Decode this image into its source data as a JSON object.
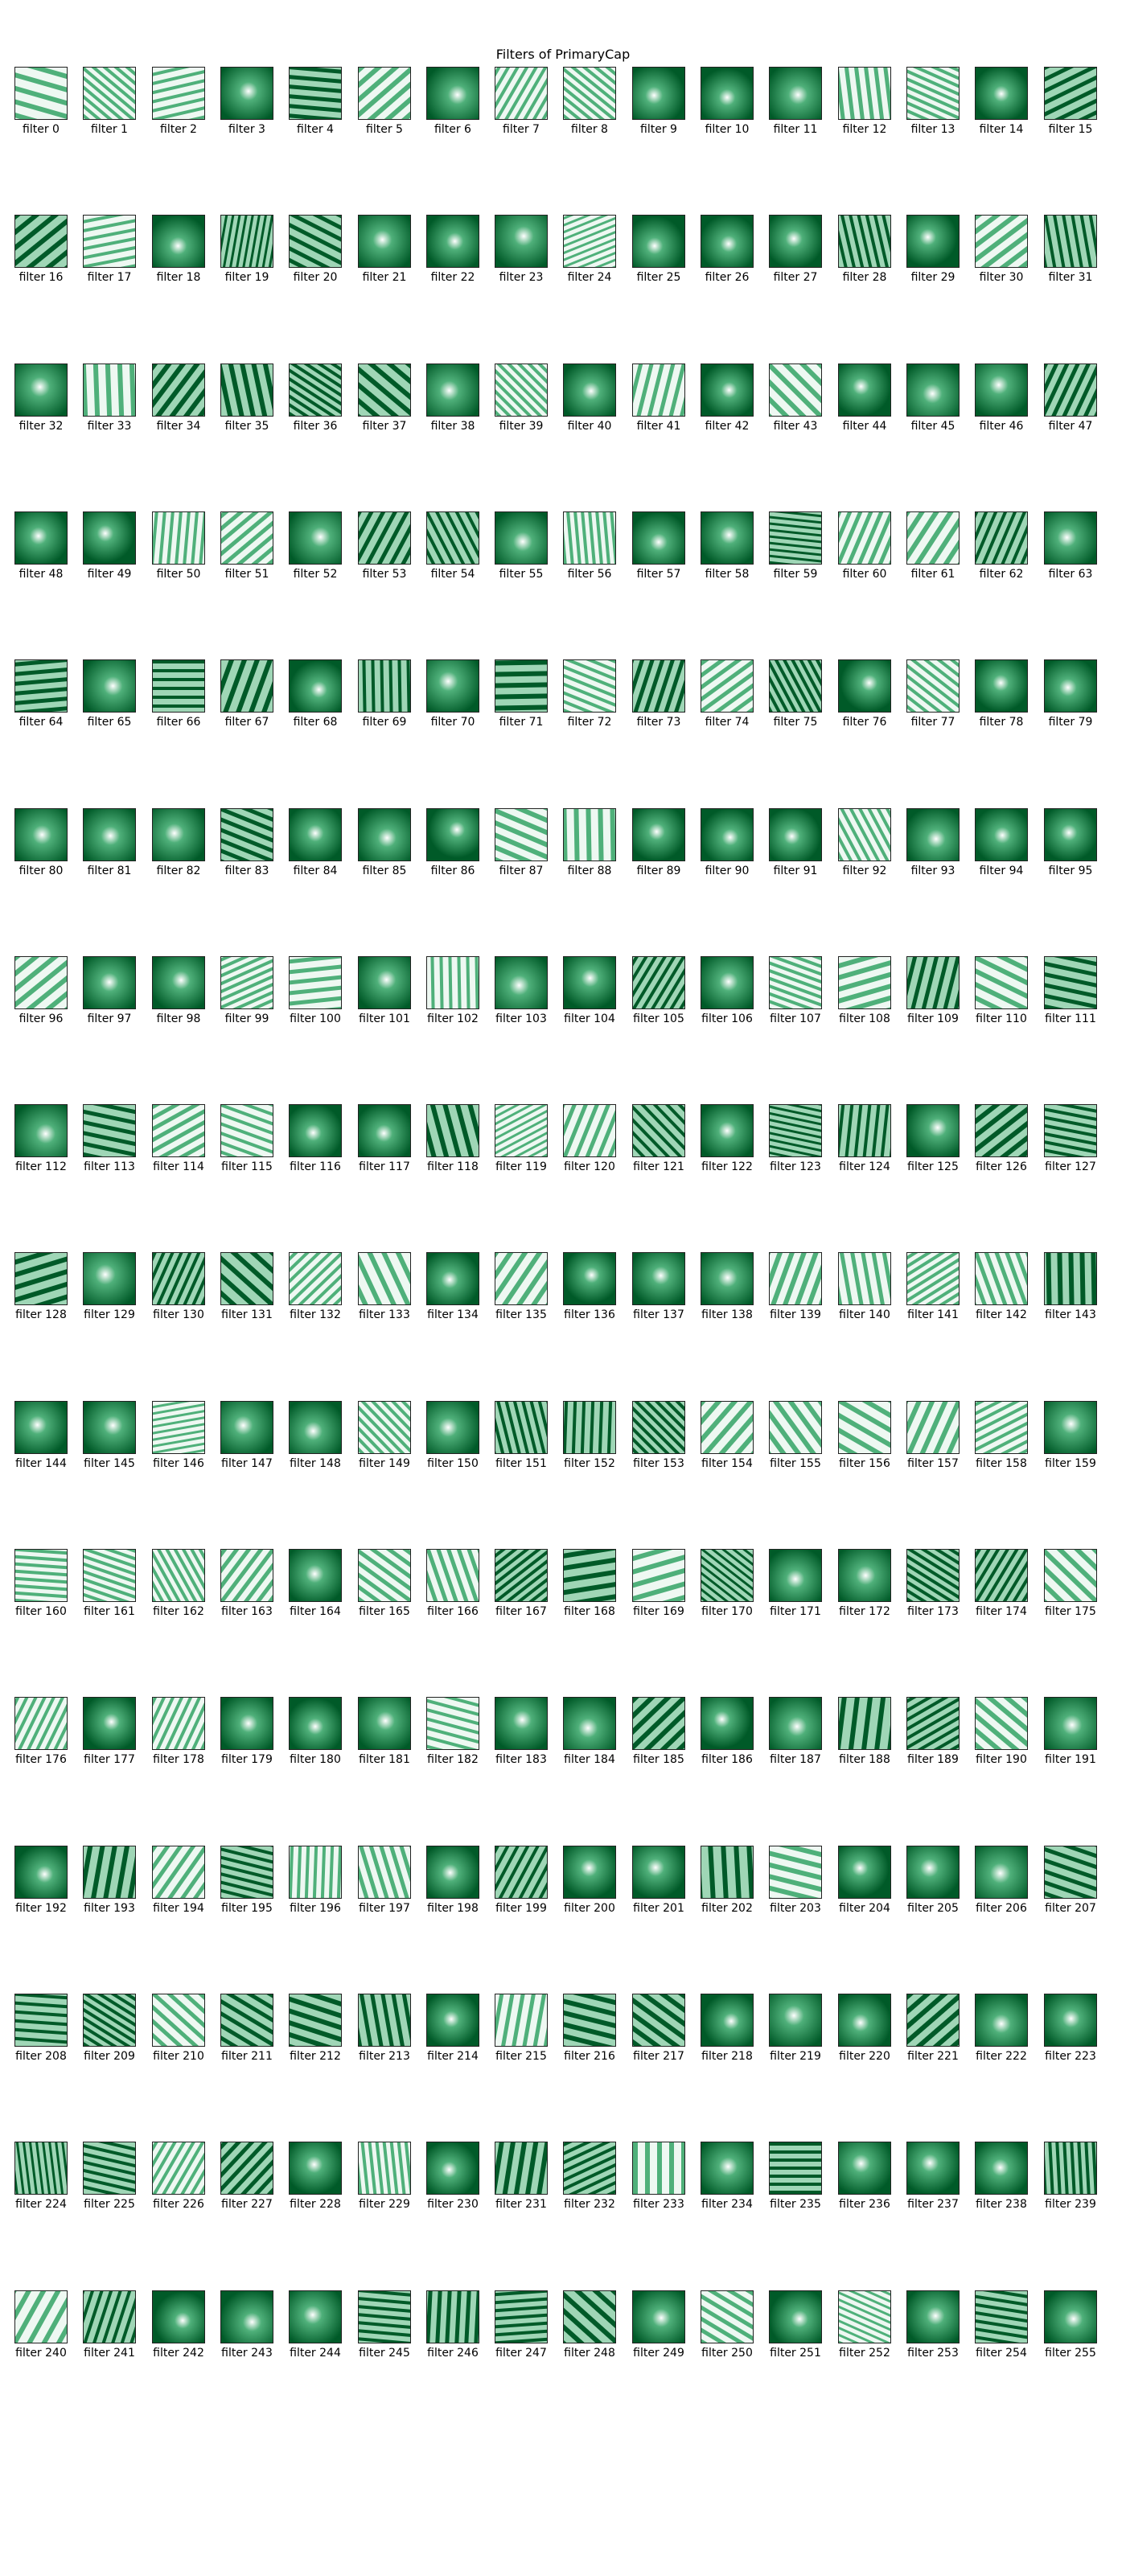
{
  "title": "Filters of PrimaryCap",
  "colormap": {
    "light": "#eef8f2",
    "mid": "#4fb07a",
    "dark": "#005a28"
  },
  "filters": [
    {
      "label": "filter 0",
      "type": "stripes"
    },
    {
      "label": "filter 1",
      "type": "stripes"
    },
    {
      "label": "filter 2",
      "type": "stripes"
    },
    {
      "label": "filter 3",
      "type": "blob"
    },
    {
      "label": "filter 4",
      "type": "stripes"
    },
    {
      "label": "filter 5",
      "type": "stripes"
    },
    {
      "label": "filter 6",
      "type": "blob"
    },
    {
      "label": "filter 7",
      "type": "stripes"
    },
    {
      "label": "filter 8",
      "type": "stripes"
    },
    {
      "label": "filter 9",
      "type": "blob"
    },
    {
      "label": "filter 10",
      "type": "blob"
    },
    {
      "label": "filter 11",
      "type": "blob"
    },
    {
      "label": "filter 12",
      "type": "stripes"
    },
    {
      "label": "filter 13",
      "type": "stripes"
    },
    {
      "label": "filter 14",
      "type": "blob"
    },
    {
      "label": "filter 15",
      "type": "stripes"
    },
    {
      "label": "filter 16",
      "type": "stripes"
    },
    {
      "label": "filter 17",
      "type": "stripes"
    },
    {
      "label": "filter 18",
      "type": "blob"
    },
    {
      "label": "filter 19",
      "type": "stripes"
    },
    {
      "label": "filter 20",
      "type": "stripes"
    },
    {
      "label": "filter 21",
      "type": "blob"
    },
    {
      "label": "filter 22",
      "type": "blob"
    },
    {
      "label": "filter 23",
      "type": "blob"
    },
    {
      "label": "filter 24",
      "type": "stripes"
    },
    {
      "label": "filter 25",
      "type": "blob"
    },
    {
      "label": "filter 26",
      "type": "blob"
    },
    {
      "label": "filter 27",
      "type": "blob"
    },
    {
      "label": "filter 28",
      "type": "stripes"
    },
    {
      "label": "filter 29",
      "type": "blob"
    },
    {
      "label": "filter 30",
      "type": "stripes"
    },
    {
      "label": "filter 31",
      "type": "stripes"
    },
    {
      "label": "filter 32",
      "type": "blob"
    },
    {
      "label": "filter 33",
      "type": "stripes"
    },
    {
      "label": "filter 34",
      "type": "stripes"
    },
    {
      "label": "filter 35",
      "type": "stripes"
    },
    {
      "label": "filter 36",
      "type": "stripes"
    },
    {
      "label": "filter 37",
      "type": "stripes"
    },
    {
      "label": "filter 38",
      "type": "blob"
    },
    {
      "label": "filter 39",
      "type": "stripes"
    },
    {
      "label": "filter 40",
      "type": "blob"
    },
    {
      "label": "filter 41",
      "type": "stripes"
    },
    {
      "label": "filter 42",
      "type": "blob"
    },
    {
      "label": "filter 43",
      "type": "stripes"
    },
    {
      "label": "filter 44",
      "type": "blob"
    },
    {
      "label": "filter 45",
      "type": "blob"
    },
    {
      "label": "filter 46",
      "type": "blob"
    },
    {
      "label": "filter 47",
      "type": "stripes"
    },
    {
      "label": "filter 48",
      "type": "blob"
    },
    {
      "label": "filter 49",
      "type": "blob"
    },
    {
      "label": "filter 50",
      "type": "stripes"
    },
    {
      "label": "filter 51",
      "type": "stripes"
    },
    {
      "label": "filter 52",
      "type": "blob"
    },
    {
      "label": "filter 53",
      "type": "stripes"
    },
    {
      "label": "filter 54",
      "type": "stripes"
    },
    {
      "label": "filter 55",
      "type": "blob"
    },
    {
      "label": "filter 56",
      "type": "stripes"
    },
    {
      "label": "filter 57",
      "type": "blob"
    },
    {
      "label": "filter 58",
      "type": "blob"
    },
    {
      "label": "filter 59",
      "type": "stripes"
    },
    {
      "label": "filter 60",
      "type": "stripes"
    },
    {
      "label": "filter 61",
      "type": "stripes"
    },
    {
      "label": "filter 62",
      "type": "stripes"
    },
    {
      "label": "filter 63",
      "type": "blob"
    },
    {
      "label": "filter 64",
      "type": "stripes"
    },
    {
      "label": "filter 65",
      "type": "blob"
    },
    {
      "label": "filter 66",
      "type": "stripes"
    },
    {
      "label": "filter 67",
      "type": "stripes"
    },
    {
      "label": "filter 68",
      "type": "blob"
    },
    {
      "label": "filter 69",
      "type": "stripes"
    },
    {
      "label": "filter 70",
      "type": "blob"
    },
    {
      "label": "filter 71",
      "type": "stripes"
    },
    {
      "label": "filter 72",
      "type": "stripes"
    },
    {
      "label": "filter 73",
      "type": "stripes"
    },
    {
      "label": "filter 74",
      "type": "stripes"
    },
    {
      "label": "filter 75",
      "type": "stripes"
    },
    {
      "label": "filter 76",
      "type": "blob"
    },
    {
      "label": "filter 77",
      "type": "stripes"
    },
    {
      "label": "filter 78",
      "type": "blob"
    },
    {
      "label": "filter 79",
      "type": "blob"
    },
    {
      "label": "filter 80",
      "type": "blob"
    },
    {
      "label": "filter 81",
      "type": "blob"
    },
    {
      "label": "filter 82",
      "type": "blob"
    },
    {
      "label": "filter 83",
      "type": "stripes"
    },
    {
      "label": "filter 84",
      "type": "blob"
    },
    {
      "label": "filter 85",
      "type": "blob"
    },
    {
      "label": "filter 86",
      "type": "blob"
    },
    {
      "label": "filter 87",
      "type": "stripes"
    },
    {
      "label": "filter 88",
      "type": "stripes"
    },
    {
      "label": "filter 89",
      "type": "blob"
    },
    {
      "label": "filter 90",
      "type": "blob"
    },
    {
      "label": "filter 91",
      "type": "blob"
    },
    {
      "label": "filter 92",
      "type": "stripes"
    },
    {
      "label": "filter 93",
      "type": "blob"
    },
    {
      "label": "filter 94",
      "type": "blob"
    },
    {
      "label": "filter 95",
      "type": "blob"
    },
    {
      "label": "filter 96",
      "type": "stripes"
    },
    {
      "label": "filter 97",
      "type": "blob"
    },
    {
      "label": "filter 98",
      "type": "blob"
    },
    {
      "label": "filter 99",
      "type": "stripes"
    },
    {
      "label": "filter 100",
      "type": "stripes"
    },
    {
      "label": "filter 101",
      "type": "blob"
    },
    {
      "label": "filter 102",
      "type": "stripes"
    },
    {
      "label": "filter 103",
      "type": "blob"
    },
    {
      "label": "filter 104",
      "type": "blob"
    },
    {
      "label": "filter 105",
      "type": "stripes"
    },
    {
      "label": "filter 106",
      "type": "blob"
    },
    {
      "label": "filter 107",
      "type": "stripes"
    },
    {
      "label": "filter 108",
      "type": "stripes"
    },
    {
      "label": "filter 109",
      "type": "stripes"
    },
    {
      "label": "filter 110",
      "type": "stripes"
    },
    {
      "label": "filter 111",
      "type": "stripes"
    },
    {
      "label": "filter 112",
      "type": "blob"
    },
    {
      "label": "filter 113",
      "type": "stripes"
    },
    {
      "label": "filter 114",
      "type": "stripes"
    },
    {
      "label": "filter 115",
      "type": "stripes"
    },
    {
      "label": "filter 116",
      "type": "blob"
    },
    {
      "label": "filter 117",
      "type": "blob"
    },
    {
      "label": "filter 118",
      "type": "stripes"
    },
    {
      "label": "filter 119",
      "type": "stripes"
    },
    {
      "label": "filter 120",
      "type": "stripes"
    },
    {
      "label": "filter 121",
      "type": "stripes"
    },
    {
      "label": "filter 122",
      "type": "blob"
    },
    {
      "label": "filter 123",
      "type": "stripes"
    },
    {
      "label": "filter 124",
      "type": "stripes"
    },
    {
      "label": "filter 125",
      "type": "blob"
    },
    {
      "label": "filter 126",
      "type": "stripes"
    },
    {
      "label": "filter 127",
      "type": "stripes"
    },
    {
      "label": "filter 128",
      "type": "stripes"
    },
    {
      "label": "filter 129",
      "type": "blob"
    },
    {
      "label": "filter 130",
      "type": "stripes"
    },
    {
      "label": "filter 131",
      "type": "stripes"
    },
    {
      "label": "filter 132",
      "type": "stripes"
    },
    {
      "label": "filter 133",
      "type": "stripes"
    },
    {
      "label": "filter 134",
      "type": "blob"
    },
    {
      "label": "filter 135",
      "type": "stripes"
    },
    {
      "label": "filter 136",
      "type": "blob"
    },
    {
      "label": "filter 137",
      "type": "blob"
    },
    {
      "label": "filter 138",
      "type": "blob"
    },
    {
      "label": "filter 139",
      "type": "stripes"
    },
    {
      "label": "filter 140",
      "type": "stripes"
    },
    {
      "label": "filter 141",
      "type": "stripes"
    },
    {
      "label": "filter 142",
      "type": "stripes"
    },
    {
      "label": "filter 143",
      "type": "stripes"
    },
    {
      "label": "filter 144",
      "type": "blob"
    },
    {
      "label": "filter 145",
      "type": "blob"
    },
    {
      "label": "filter 146",
      "type": "stripes"
    },
    {
      "label": "filter 147",
      "type": "blob"
    },
    {
      "label": "filter 148",
      "type": "blob"
    },
    {
      "label": "filter 149",
      "type": "stripes"
    },
    {
      "label": "filter 150",
      "type": "blob"
    },
    {
      "label": "filter 151",
      "type": "stripes"
    },
    {
      "label": "filter 152",
      "type": "stripes"
    },
    {
      "label": "filter 153",
      "type": "stripes"
    },
    {
      "label": "filter 154",
      "type": "stripes"
    },
    {
      "label": "filter 155",
      "type": "stripes"
    },
    {
      "label": "filter 156",
      "type": "stripes"
    },
    {
      "label": "filter 157",
      "type": "stripes"
    },
    {
      "label": "filter 158",
      "type": "stripes"
    },
    {
      "label": "filter 159",
      "type": "blob"
    },
    {
      "label": "filter 160",
      "type": "stripes"
    },
    {
      "label": "filter 161",
      "type": "stripes"
    },
    {
      "label": "filter 162",
      "type": "stripes"
    },
    {
      "label": "filter 163",
      "type": "stripes"
    },
    {
      "label": "filter 164",
      "type": "blob"
    },
    {
      "label": "filter 165",
      "type": "stripes"
    },
    {
      "label": "filter 166",
      "type": "stripes"
    },
    {
      "label": "filter 167",
      "type": "stripes"
    },
    {
      "label": "filter 168",
      "type": "stripes"
    },
    {
      "label": "filter 169",
      "type": "stripes"
    },
    {
      "label": "filter 170",
      "type": "stripes"
    },
    {
      "label": "filter 171",
      "type": "blob"
    },
    {
      "label": "filter 172",
      "type": "blob"
    },
    {
      "label": "filter 173",
      "type": "stripes"
    },
    {
      "label": "filter 174",
      "type": "stripes"
    },
    {
      "label": "filter 175",
      "type": "stripes"
    },
    {
      "label": "filter 176",
      "type": "stripes"
    },
    {
      "label": "filter 177",
      "type": "blob"
    },
    {
      "label": "filter 178",
      "type": "stripes"
    },
    {
      "label": "filter 179",
      "type": "blob"
    },
    {
      "label": "filter 180",
      "type": "blob"
    },
    {
      "label": "filter 181",
      "type": "blob"
    },
    {
      "label": "filter 182",
      "type": "stripes"
    },
    {
      "label": "filter 183",
      "type": "blob"
    },
    {
      "label": "filter 184",
      "type": "blob"
    },
    {
      "label": "filter 185",
      "type": "stripes"
    },
    {
      "label": "filter 186",
      "type": "blob"
    },
    {
      "label": "filter 187",
      "type": "blob"
    },
    {
      "label": "filter 188",
      "type": "stripes"
    },
    {
      "label": "filter 189",
      "type": "stripes"
    },
    {
      "label": "filter 190",
      "type": "stripes"
    },
    {
      "label": "filter 191",
      "type": "blob"
    },
    {
      "label": "filter 192",
      "type": "blob"
    },
    {
      "label": "filter 193",
      "type": "stripes"
    },
    {
      "label": "filter 194",
      "type": "stripes"
    },
    {
      "label": "filter 195",
      "type": "stripes"
    },
    {
      "label": "filter 196",
      "type": "stripes"
    },
    {
      "label": "filter 197",
      "type": "stripes"
    },
    {
      "label": "filter 198",
      "type": "blob"
    },
    {
      "label": "filter 199",
      "type": "stripes"
    },
    {
      "label": "filter 200",
      "type": "blob"
    },
    {
      "label": "filter 201",
      "type": "blob"
    },
    {
      "label": "filter 202",
      "type": "stripes"
    },
    {
      "label": "filter 203",
      "type": "stripes"
    },
    {
      "label": "filter 204",
      "type": "blob"
    },
    {
      "label": "filter 205",
      "type": "blob"
    },
    {
      "label": "filter 206",
      "type": "blob"
    },
    {
      "label": "filter 207",
      "type": "stripes"
    },
    {
      "label": "filter 208",
      "type": "stripes"
    },
    {
      "label": "filter 209",
      "type": "stripes"
    },
    {
      "label": "filter 210",
      "type": "stripes"
    },
    {
      "label": "filter 211",
      "type": "stripes"
    },
    {
      "label": "filter 212",
      "type": "stripes"
    },
    {
      "label": "filter 213",
      "type": "stripes"
    },
    {
      "label": "filter 214",
      "type": "blob"
    },
    {
      "label": "filter 215",
      "type": "stripes"
    },
    {
      "label": "filter 216",
      "type": "stripes"
    },
    {
      "label": "filter 217",
      "type": "stripes"
    },
    {
      "label": "filter 218",
      "type": "blob"
    },
    {
      "label": "filter 219",
      "type": "blob"
    },
    {
      "label": "filter 220",
      "type": "blob"
    },
    {
      "label": "filter 221",
      "type": "stripes"
    },
    {
      "label": "filter 222",
      "type": "blob"
    },
    {
      "label": "filter 223",
      "type": "blob"
    },
    {
      "label": "filter 224",
      "type": "stripes"
    },
    {
      "label": "filter 225",
      "type": "stripes"
    },
    {
      "label": "filter 226",
      "type": "stripes"
    },
    {
      "label": "filter 227",
      "type": "stripes"
    },
    {
      "label": "filter 228",
      "type": "blob"
    },
    {
      "label": "filter 229",
      "type": "stripes"
    },
    {
      "label": "filter 230",
      "type": "blob"
    },
    {
      "label": "filter 231",
      "type": "stripes"
    },
    {
      "label": "filter 232",
      "type": "stripes"
    },
    {
      "label": "filter 233",
      "type": "stripes"
    },
    {
      "label": "filter 234",
      "type": "blob"
    },
    {
      "label": "filter 235",
      "type": "stripes"
    },
    {
      "label": "filter 236",
      "type": "blob"
    },
    {
      "label": "filter 237",
      "type": "blob"
    },
    {
      "label": "filter 238",
      "type": "blob"
    },
    {
      "label": "filter 239",
      "type": "stripes"
    },
    {
      "label": "filter 240",
      "type": "stripes"
    },
    {
      "label": "filter 241",
      "type": "stripes"
    },
    {
      "label": "filter 242",
      "type": "blob"
    },
    {
      "label": "filter 243",
      "type": "blob"
    },
    {
      "label": "filter 244",
      "type": "blob"
    },
    {
      "label": "filter 245",
      "type": "stripes"
    },
    {
      "label": "filter 246",
      "type": "stripes"
    },
    {
      "label": "filter 247",
      "type": "stripes"
    },
    {
      "label": "filter 248",
      "type": "stripes"
    },
    {
      "label": "filter 249",
      "type": "blob"
    },
    {
      "label": "filter 250",
      "type": "stripes"
    },
    {
      "label": "filter 251",
      "type": "blob"
    },
    {
      "label": "filter 252",
      "type": "stripes"
    },
    {
      "label": "filter 253",
      "type": "blob"
    },
    {
      "label": "filter 254",
      "type": "stripes"
    },
    {
      "label": "filter 255",
      "type": "blob"
    }
  ]
}
